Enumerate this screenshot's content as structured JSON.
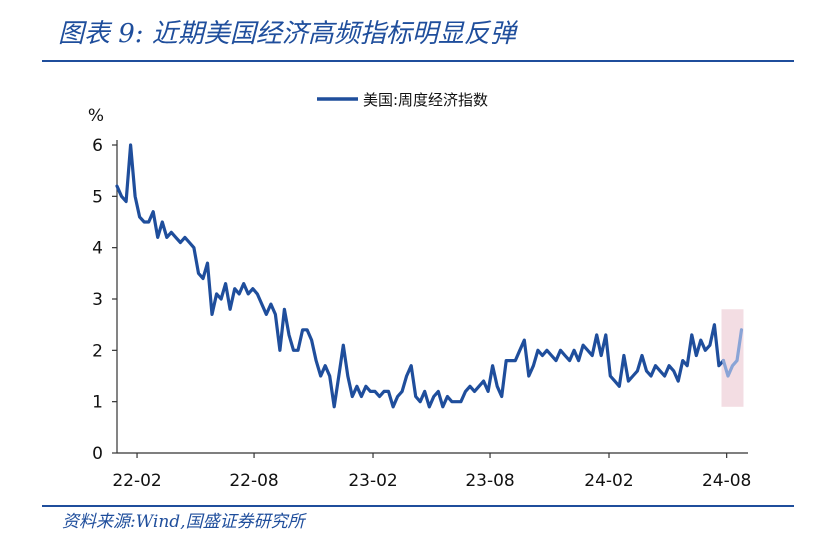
{
  "header": {
    "title": "图表 9:  近期美国经济高频指标明显反弹"
  },
  "footer": {
    "source": "资料来源:Wind,国盛证券研究所"
  },
  "chart_data": {
    "type": "line",
    "ylabel": "%",
    "ylim": [
      0,
      6
    ],
    "yticks": [
      "0",
      "1",
      "2",
      "3",
      "4",
      "5",
      "6"
    ],
    "xticks": [
      "22-02",
      "22-08",
      "23-02",
      "23-08",
      "24-02",
      "24-08"
    ],
    "grid": false,
    "legend_position": "top",
    "series": [
      {
        "name": "美国:周度经济指数",
        "color": "#1f4e9c",
        "x": [
          "2022-01-01",
          "2022-01-08",
          "2022-01-15",
          "2022-01-22",
          "2022-01-29",
          "2022-02-05",
          "2022-02-12",
          "2022-02-19",
          "2022-02-26",
          "2022-03-05",
          "2022-03-12",
          "2022-03-19",
          "2022-03-26",
          "2022-04-02",
          "2022-04-09",
          "2022-04-16",
          "2022-04-23",
          "2022-04-30",
          "2022-05-07",
          "2022-05-14",
          "2022-05-21",
          "2022-05-28",
          "2022-06-04",
          "2022-06-11",
          "2022-06-18",
          "2022-06-25",
          "2022-07-02",
          "2022-07-09",
          "2022-07-16",
          "2022-07-23",
          "2022-07-30",
          "2022-08-06",
          "2022-08-13",
          "2022-08-20",
          "2022-08-27",
          "2022-09-03",
          "2022-09-10",
          "2022-09-17",
          "2022-09-24",
          "2022-10-01",
          "2022-10-08",
          "2022-10-15",
          "2022-10-22",
          "2022-10-29",
          "2022-11-05",
          "2022-11-12",
          "2022-11-19",
          "2022-11-26",
          "2022-12-03",
          "2022-12-10",
          "2022-12-17",
          "2022-12-24",
          "2022-12-31",
          "2023-01-07",
          "2023-01-14",
          "2023-01-21",
          "2023-01-28",
          "2023-02-04",
          "2023-02-11",
          "2023-02-18",
          "2023-02-25",
          "2023-03-04",
          "2023-03-11",
          "2023-03-18",
          "2023-03-25",
          "2023-04-01",
          "2023-04-08",
          "2023-04-15",
          "2023-04-22",
          "2023-04-29",
          "2023-05-06",
          "2023-05-13",
          "2023-05-20",
          "2023-05-27",
          "2023-06-03",
          "2023-06-10",
          "2023-06-17",
          "2023-06-24",
          "2023-07-01",
          "2023-07-08",
          "2023-07-15",
          "2023-07-22",
          "2023-07-29",
          "2023-08-05",
          "2023-08-12",
          "2023-08-19",
          "2023-08-26",
          "2023-09-02",
          "2023-09-09",
          "2023-09-16",
          "2023-09-23",
          "2023-09-30",
          "2023-10-07",
          "2023-10-14",
          "2023-10-21",
          "2023-10-28",
          "2023-11-04",
          "2023-11-11",
          "2023-11-18",
          "2023-11-25",
          "2023-12-02",
          "2023-12-09",
          "2023-12-16",
          "2023-12-23",
          "2023-12-30",
          "2024-01-06",
          "2024-01-13",
          "2024-01-20",
          "2024-01-27",
          "2024-02-03",
          "2024-02-10",
          "2024-02-17",
          "2024-02-24",
          "2024-03-02",
          "2024-03-09",
          "2024-03-16",
          "2024-03-23",
          "2024-03-30",
          "2024-04-06",
          "2024-04-13",
          "2024-04-20",
          "2024-04-27",
          "2024-05-04",
          "2024-05-11",
          "2024-05-18",
          "2024-05-25",
          "2024-06-01",
          "2024-06-08",
          "2024-06-15",
          "2024-06-22",
          "2024-06-29",
          "2024-07-06",
          "2024-07-13",
          "2024-07-20",
          "2024-07-27"
        ],
        "values": [
          5.2,
          5.0,
          4.9,
          6.0,
          5.0,
          4.6,
          4.5,
          4.5,
          4.7,
          4.2,
          4.5,
          4.2,
          4.3,
          4.2,
          4.1,
          4.2,
          4.1,
          4.0,
          3.5,
          3.4,
          3.7,
          2.7,
          3.1,
          3.0,
          3.3,
          2.8,
          3.2,
          3.1,
          3.3,
          3.1,
          3.2,
          3.1,
          2.9,
          2.7,
          2.9,
          2.7,
          2.0,
          2.8,
          2.3,
          2.0,
          2.0,
          2.4,
          2.4,
          2.2,
          1.8,
          1.5,
          1.7,
          1.5,
          0.9,
          1.5,
          2.1,
          1.5,
          1.1,
          1.3,
          1.1,
          1.3,
          1.2,
          1.2,
          1.1,
          1.2,
          1.2,
          0.9,
          1.1,
          1.2,
          1.5,
          1.7,
          1.1,
          1.0,
          1.2,
          0.9,
          1.1,
          1.2,
          0.9,
          1.1,
          1.0,
          1.0,
          1.0,
          1.2,
          1.3,
          1.2,
          1.3,
          1.4,
          1.2,
          1.7,
          1.3,
          1.1,
          1.8,
          1.8,
          1.8,
          2.0,
          2.2,
          1.5,
          1.7,
          2.0,
          1.9,
          2.0,
          1.9,
          1.8,
          2.0,
          1.9,
          1.8,
          2.0,
          1.8,
          2.1,
          2.0,
          1.9,
          2.3,
          1.9,
          2.3,
          1.5,
          1.4,
          1.3,
          1.9,
          1.4,
          1.5,
          1.6,
          1.9,
          1.6,
          1.5,
          1.7,
          1.6,
          1.5,
          1.7,
          1.6,
          1.4,
          1.8,
          1.7,
          2.3,
          1.9,
          2.2,
          2.0,
          2.1,
          2.5,
          1.7,
          1.8
        ]
      },
      {
        "name": "",
        "color": "#8aa4d6",
        "x": [
          "2024-07-27",
          "2024-08-03",
          "2024-08-10",
          "2024-08-17",
          "2024-08-24"
        ],
        "values": [
          1.8,
          1.5,
          1.7,
          1.8,
          2.4
        ]
      }
    ],
    "highlight": {
      "x_range": [
        "2024-07-24",
        "2024-08-27"
      ],
      "y_range": [
        0.9,
        2.8
      ],
      "color": "#f3dde3"
    }
  }
}
